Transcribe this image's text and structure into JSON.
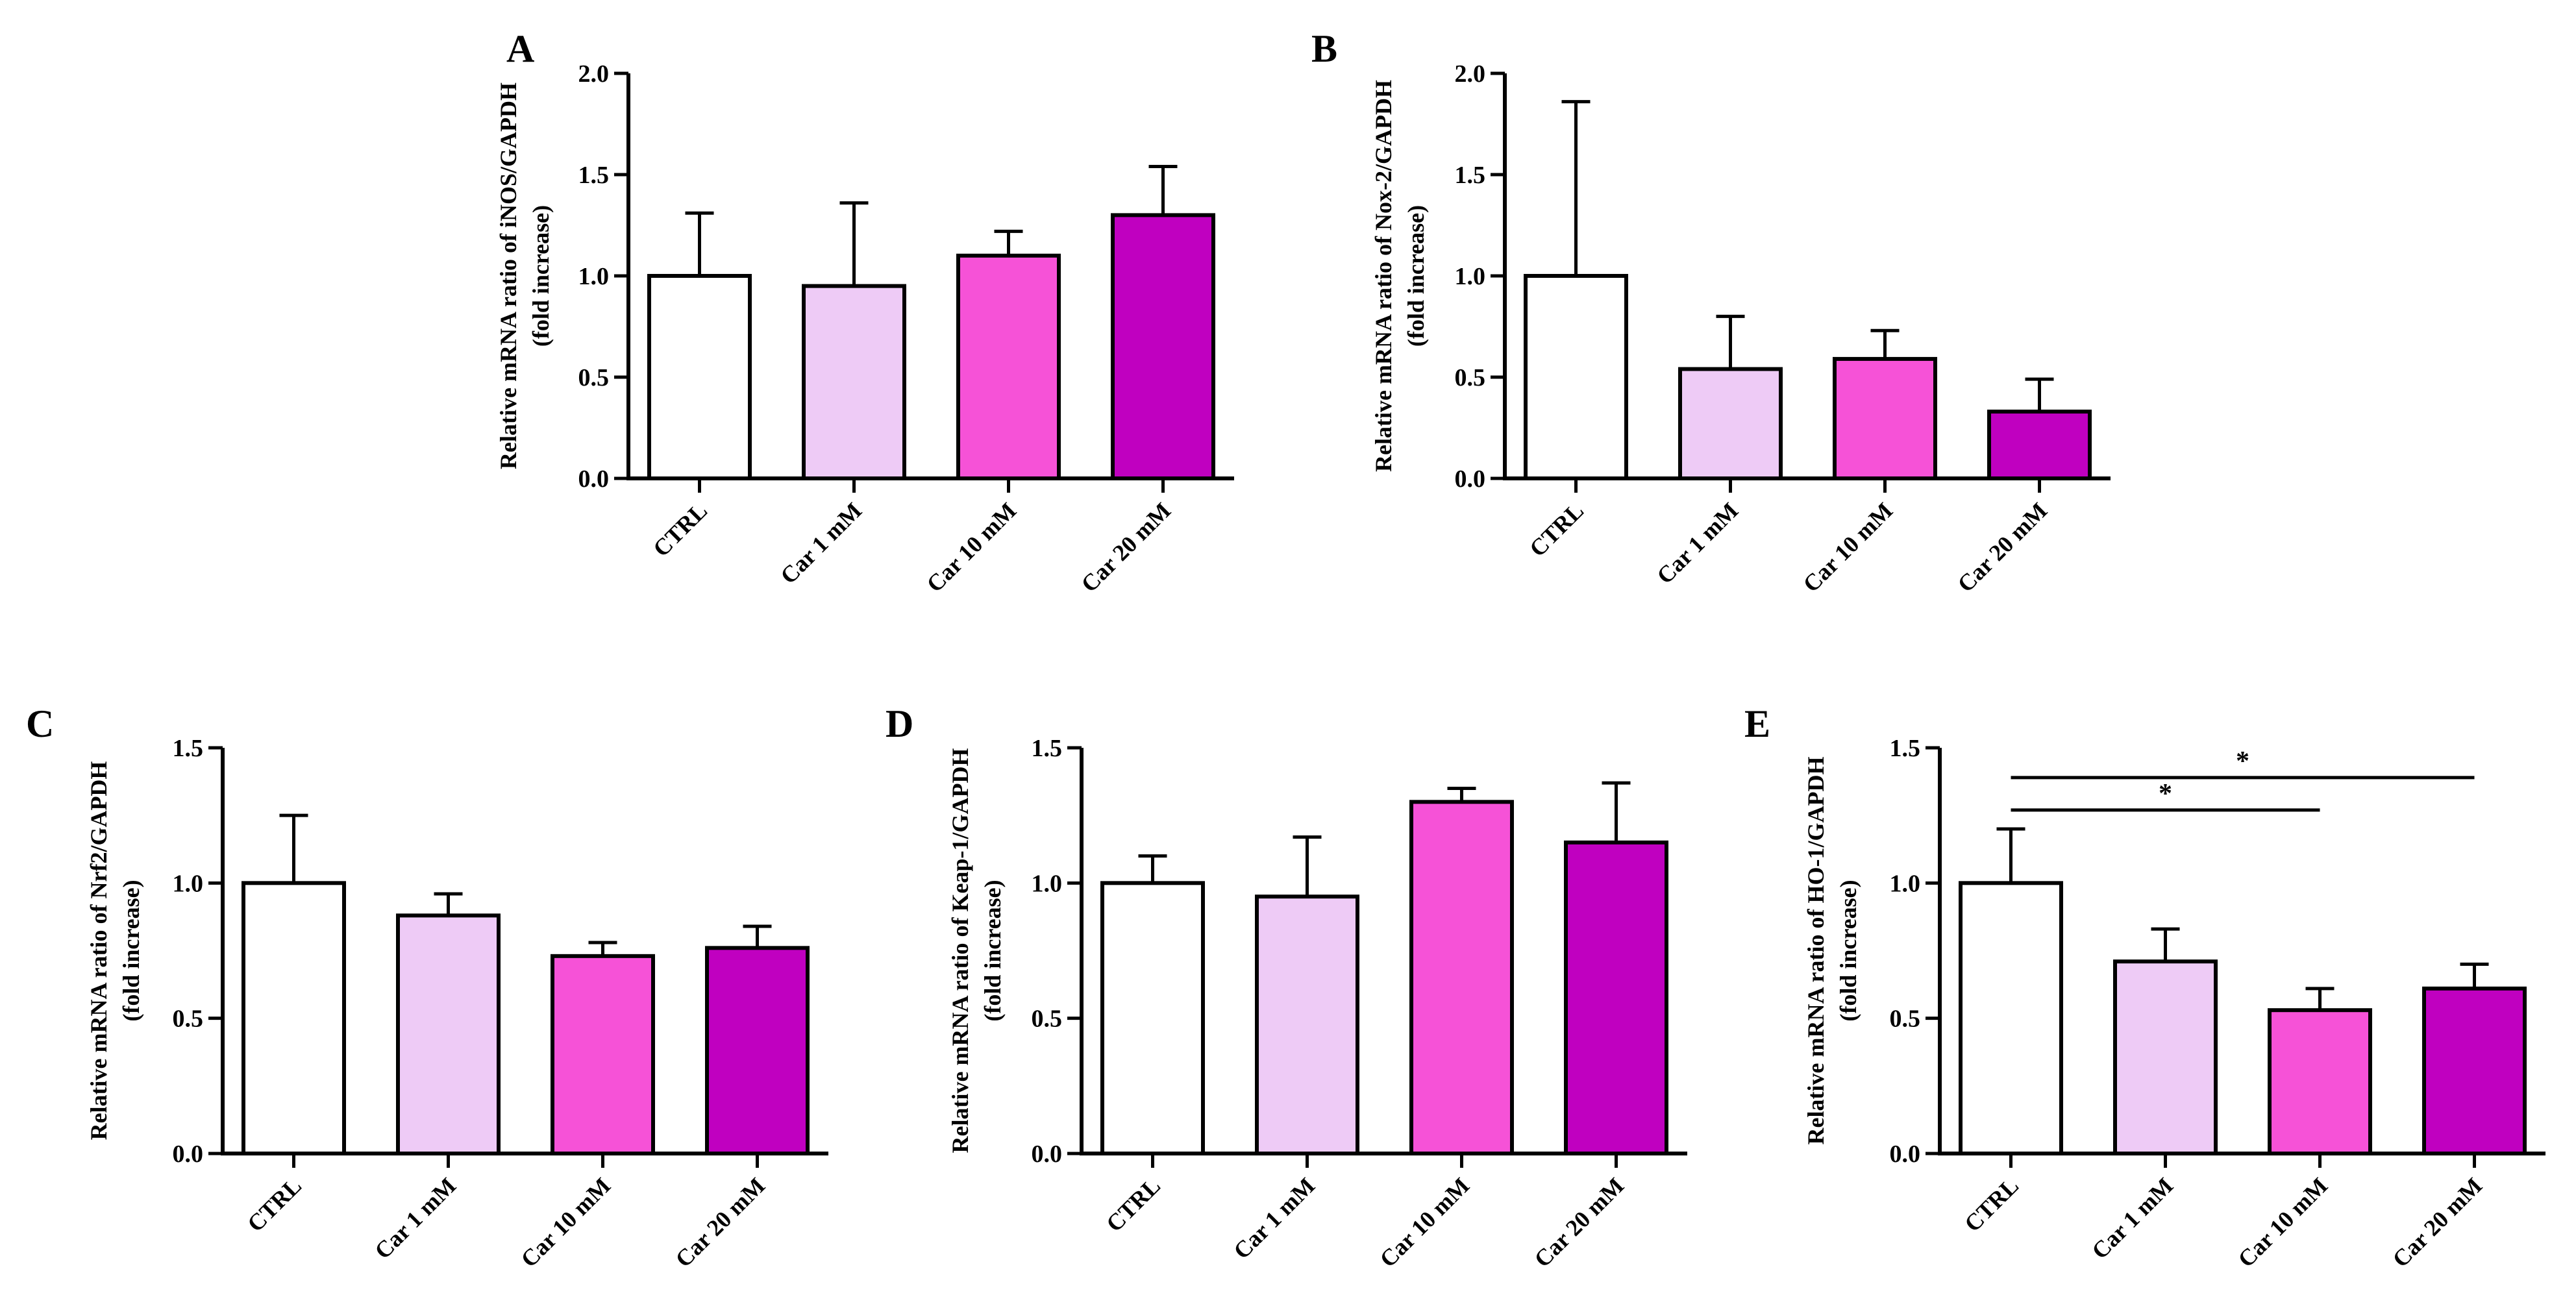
{
  "colors": {
    "bars": [
      "#ffffff",
      "#eecbf6",
      "#f652d7",
      "#c000c0"
    ],
    "stroke": "#000000"
  },
  "chart_data": [
    {
      "panel": "A",
      "type": "bar",
      "categories": [
        "CTRL",
        "Car 1 mM",
        "Car 10 mM",
        "Car 20 mM"
      ],
      "values": [
        1.0,
        0.95,
        1.1,
        1.3
      ],
      "errors": [
        0.31,
        0.41,
        0.12,
        0.24
      ],
      "ylabel": [
        "Relative mRNA ratio of iNOS/GAPDH",
        "(fold increase)"
      ],
      "ylim": [
        0,
        2.0
      ],
      "ticks": [
        "0.0",
        "0.5",
        "1.0",
        "1.5",
        "2.0"
      ],
      "significance": []
    },
    {
      "panel": "B",
      "type": "bar",
      "categories": [
        "CTRL",
        "Car 1 mM",
        "Car 10 mM",
        "Car 20 mM"
      ],
      "values": [
        1.0,
        0.54,
        0.59,
        0.33
      ],
      "errors": [
        0.86,
        0.26,
        0.14,
        0.16
      ],
      "ylabel": [
        "Relative mRNA ratio of Nox-2/GAPDH",
        "(fold increase)"
      ],
      "ylim": [
        0,
        2.0
      ],
      "ticks": [
        "0.0",
        "0.5",
        "1.0",
        "1.5",
        "2.0"
      ],
      "significance": []
    },
    {
      "panel": "C",
      "type": "bar",
      "categories": [
        "CTRL",
        "Car 1 mM",
        "Car 10 mM",
        "Car 20 mM"
      ],
      "values": [
        1.0,
        0.88,
        0.73,
        0.76
      ],
      "errors": [
        0.25,
        0.08,
        0.05,
        0.08
      ],
      "ylabel": [
        "Relative mRNA ratio of Nrf2/GAPDH",
        "(fold increase)"
      ],
      "ylim": [
        0,
        1.5
      ],
      "ticks": [
        "0.0",
        "0.5",
        "1.0",
        "1.5"
      ],
      "significance": []
    },
    {
      "panel": "D",
      "type": "bar",
      "categories": [
        "CTRL",
        "Car 1 mM",
        "Car 10 mM",
        "Car 20 mM"
      ],
      "values": [
        1.0,
        0.95,
        1.3,
        1.15
      ],
      "errors": [
        0.1,
        0.22,
        0.05,
        0.22
      ],
      "ylabel": [
        "Relative mRNA ratio of Keap-1/GAPDH",
        "(fold increase)"
      ],
      "ylim": [
        0,
        1.5
      ],
      "ticks": [
        "0.0",
        "0.5",
        "1.0",
        "1.5"
      ],
      "significance": []
    },
    {
      "panel": "E",
      "type": "bar",
      "categories": [
        "CTRL",
        "Car 1 mM",
        "Car 10 mM",
        "Car 20 mM"
      ],
      "values": [
        1.0,
        0.71,
        0.53,
        0.61
      ],
      "errors": [
        0.2,
        0.12,
        0.08,
        0.09
      ],
      "ylabel": [
        "Relative mRNA ratio of HO-1/GAPDH",
        "(fold increase)"
      ],
      "ylim": [
        0,
        1.5
      ],
      "ticks": [
        "0.0",
        "0.5",
        "1.0",
        "1.5"
      ],
      "significance": [
        {
          "from": 0,
          "to": 2,
          "label": "*",
          "y": 1.27
        },
        {
          "from": 0,
          "to": 3,
          "label": "*",
          "y": 1.39
        }
      ]
    }
  ]
}
